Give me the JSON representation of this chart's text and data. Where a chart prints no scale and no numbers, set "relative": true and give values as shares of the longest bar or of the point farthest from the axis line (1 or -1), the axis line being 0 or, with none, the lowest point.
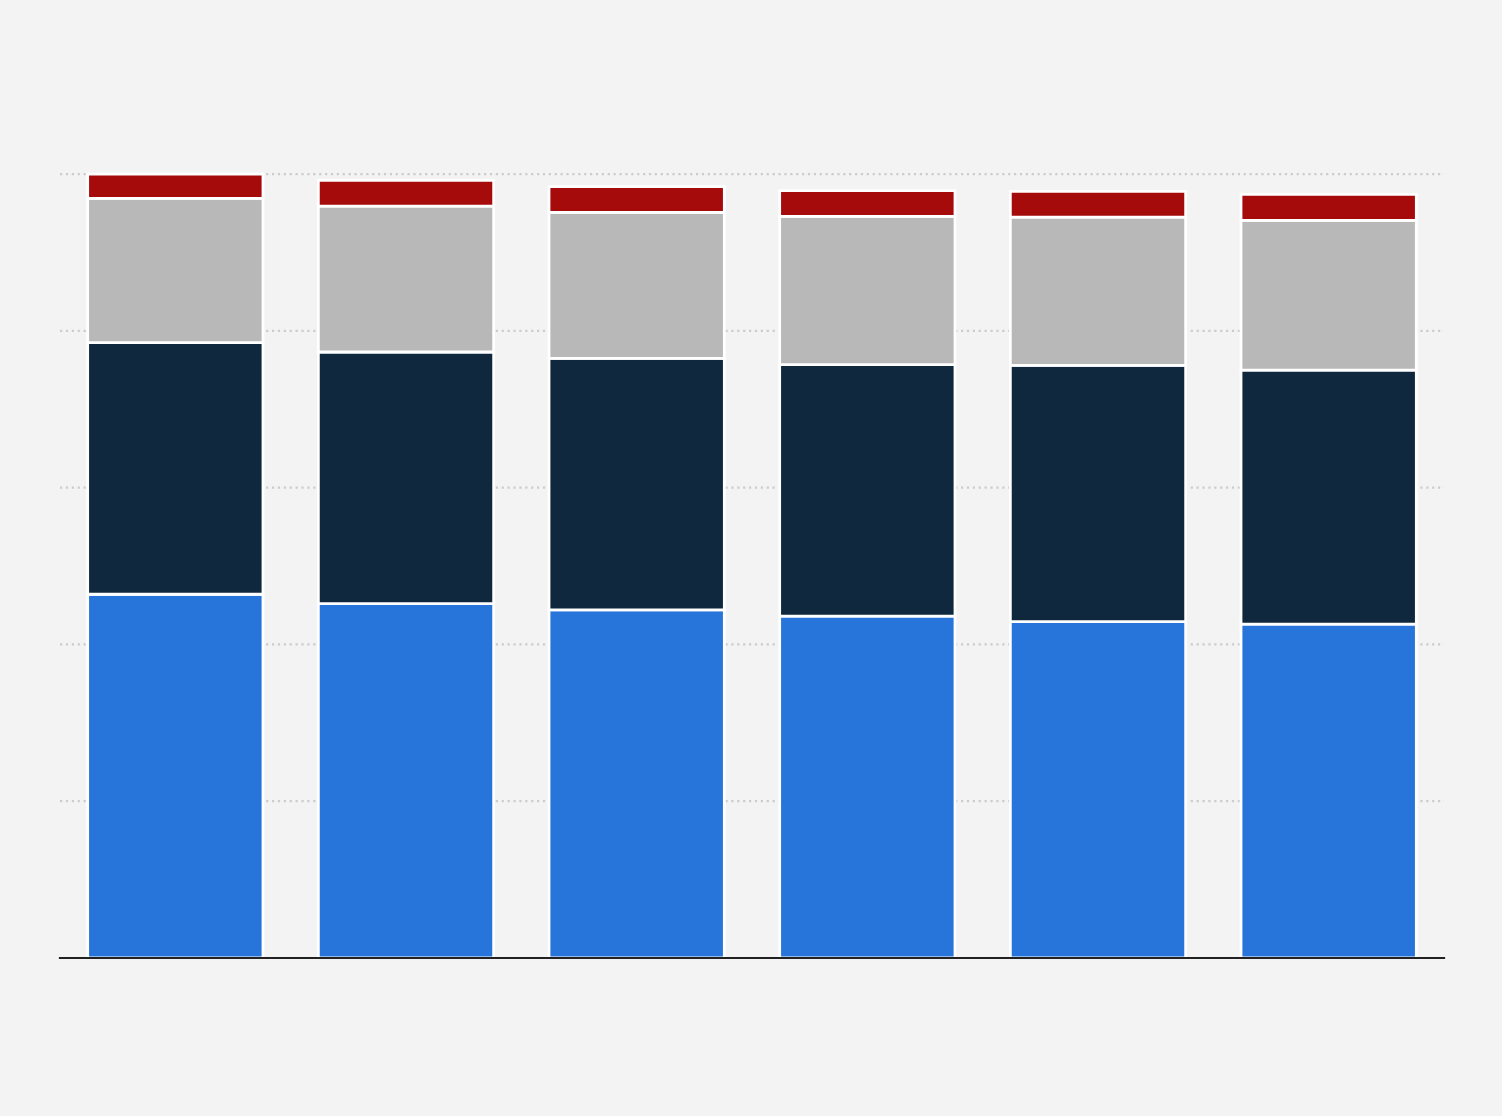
{
  "chart_data": {
    "type": "bar",
    "stacked": true,
    "relative": true,
    "grid": "y",
    "categories": [
      null,
      null,
      null,
      null,
      null,
      null
    ],
    "series": [
      {
        "color": "#2775db",
        "values": [
          0.464,
          0.452,
          0.444,
          0.436,
          0.429,
          0.426
        ]
      },
      {
        "color": "#0f283d",
        "values": [
          0.321,
          0.321,
          0.321,
          0.321,
          0.327,
          0.324
        ]
      },
      {
        "color": "#b8b8b8",
        "values": [
          0.184,
          0.186,
          0.186,
          0.189,
          0.189,
          0.191
        ]
      },
      {
        "color": "#a50b0b",
        "values": [
          0.031,
          0.033,
          0.033,
          0.033,
          0.033,
          0.033
        ]
      }
    ]
  }
}
